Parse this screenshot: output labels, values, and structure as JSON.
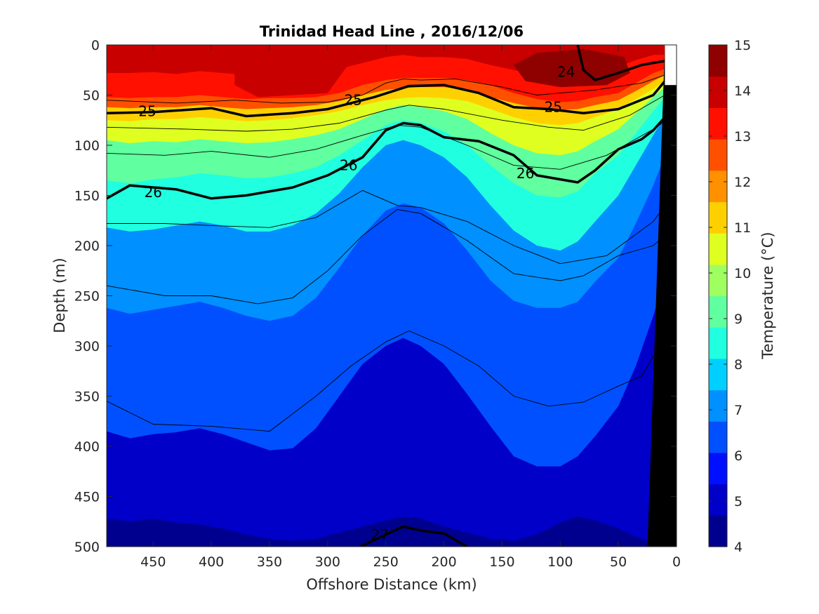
{
  "chart_data": {
    "type": "heatmap",
    "title": "Trinidad Head Line , 2016/12/06",
    "xlabel": "Offshore Distance (km)",
    "ylabel": "Depth (m)",
    "colorbar_label": "Temperature (°C)",
    "x_reversed": true,
    "y_reversed": true,
    "xlim": [
      0,
      490
    ],
    "ylim": [
      0,
      500
    ],
    "xticks": [
      450,
      400,
      350,
      300,
      250,
      200,
      150,
      100,
      50,
      0
    ],
    "yticks": [
      0,
      50,
      100,
      150,
      200,
      250,
      300,
      350,
      400,
      450,
      500
    ],
    "colorbar_range": [
      4,
      15
    ],
    "colorbar_ticks": [
      4,
      5,
      6,
      7,
      8,
      9,
      10,
      11,
      12,
      13,
      14,
      15
    ],
    "colormap": [
      "#00008f",
      "#0000c8",
      "#0010ff",
      "#0050ff",
      "#0090ff",
      "#00d0ff",
      "#20ffdf",
      "#60ff9f",
      "#a0ff60",
      "#dfff20",
      "#ffd000",
      "#ff9000",
      "#ff5000",
      "#ff1000",
      "#c80000",
      "#8f0000"
    ],
    "x_profile_km": [
      490,
      470,
      450,
      430,
      410,
      390,
      370,
      350,
      330,
      310,
      290,
      270,
      250,
      235,
      220,
      200,
      180,
      160,
      140,
      120,
      100,
      85,
      70,
      50,
      35,
      20,
      10
    ],
    "isotherm_depths": [
      {
        "temp": 14,
        "depth": [
          28,
          28,
          27,
          29,
          26,
          28,
          30,
          30,
          28,
          26,
          24,
          18,
          12,
          10,
          12,
          12,
          14,
          20,
          25,
          30,
          32,
          30,
          26,
          22,
          15,
          10,
          10
        ]
      },
      {
        "temp": 13,
        "depth": [
          52,
          53,
          52,
          52,
          50,
          52,
          54,
          53,
          53,
          52,
          48,
          40,
          35,
          33,
          33,
          33,
          35,
          40,
          48,
          54,
          57,
          56,
          52,
          48,
          38,
          28,
          24
        ]
      },
      {
        "temp": 12,
        "depth": [
          62,
          63,
          62,
          62,
          60,
          62,
          64,
          63,
          62,
          60,
          56,
          50,
          45,
          43,
          42,
          42,
          45,
          52,
          58,
          63,
          65,
          64,
          60,
          55,
          46,
          36,
          30
        ]
      },
      {
        "temp": 11,
        "depth": [
          75,
          76,
          74,
          74,
          72,
          74,
          76,
          75,
          73,
          70,
          66,
          60,
          55,
          53,
          52,
          53,
          56,
          64,
          72,
          78,
          80,
          78,
          72,
          64,
          54,
          44,
          36
        ]
      },
      {
        "temp": 10,
        "depth": [
          95,
          98,
          96,
          97,
          94,
          96,
          98,
          97,
          94,
          90,
          84,
          74,
          64,
          60,
          62,
          66,
          74,
          88,
          100,
          108,
          110,
          106,
          96,
          84,
          68,
          52,
          42
        ]
      },
      {
        "temp": 9,
        "depth": [
          135,
          138,
          134,
          132,
          128,
          130,
          133,
          132,
          128,
          122,
          110,
          95,
          80,
          75,
          78,
          86,
          100,
          120,
          138,
          150,
          152,
          146,
          128,
          110,
          88,
          66,
          52
        ]
      },
      {
        "temp": 8,
        "depth": [
          182,
          186,
          184,
          180,
          176,
          180,
          186,
          186,
          180,
          168,
          148,
          122,
          100,
          95,
          100,
          112,
          132,
          160,
          185,
          200,
          205,
          196,
          176,
          150,
          120,
          90,
          70
        ]
      },
      {
        "temp": 7,
        "depth": [
          262,
          268,
          264,
          260,
          256,
          262,
          270,
          275,
          270,
          252,
          222,
          190,
          165,
          158,
          162,
          178,
          205,
          235,
          255,
          262,
          262,
          256,
          236,
          212,
          178,
          140,
          110
        ]
      },
      {
        "temp": 6,
        "depth": [
          385,
          392,
          388,
          386,
          382,
          388,
          396,
          404,
          402,
          382,
          350,
          318,
          300,
          292,
          300,
          318,
          348,
          380,
          410,
          420,
          420,
          410,
          390,
          360,
          320,
          270,
          230
        ]
      },
      {
        "temp": 5,
        "depth": [
          472,
          475,
          472,
          476,
          478,
          482,
          488,
          492,
          494,
          492,
          486,
          480,
          474,
          470,
          472,
          480,
          486,
          492,
          494,
          488,
          476,
          470,
          474,
          482,
          490,
          496,
          500
        ]
      }
    ],
    "density_contours": [
      {
        "label": "24",
        "x": [
          85,
          80,
          70,
          50,
          30,
          20,
          10
        ],
        "y": [
          0,
          25,
          35,
          28,
          20,
          18,
          16
        ]
      },
      {
        "label": "25",
        "x": [
          490,
          450,
          400,
          370,
          330,
          300,
          260,
          230,
          200,
          170,
          140,
          110,
          80,
          50,
          20,
          10
        ],
        "y": [
          68,
          67,
          63,
          71,
          68,
          64,
          52,
          41,
          40,
          48,
          62,
          64,
          68,
          64,
          50,
          36
        ]
      },
      {
        "label": "26",
        "x": [
          490,
          470,
          430,
          400,
          370,
          330,
          300,
          270,
          250,
          235,
          220,
          200,
          170,
          140,
          120,
          100,
          85,
          70,
          50,
          30,
          20,
          10
        ],
        "y": [
          153,
          140,
          144,
          153,
          150,
          142,
          130,
          112,
          85,
          78,
          80,
          92,
          96,
          110,
          130,
          134,
          137,
          125,
          104,
          94,
          85,
          72
        ]
      },
      {
        "label": "27",
        "x": [
          272,
          250,
          235,
          220,
          200,
          180
        ],
        "y": [
          500,
          488,
          480,
          484,
          487,
          500
        ]
      }
    ],
    "label_positions": [
      {
        "label": "24",
        "x": 95,
        "y": 27
      },
      {
        "label": "25",
        "x": 455,
        "y": 66
      },
      {
        "label": "25",
        "x": 278,
        "y": 55
      },
      {
        "label": "25",
        "x": 106,
        "y": 62
      },
      {
        "label": "26",
        "x": 450,
        "y": 147
      },
      {
        "label": "26",
        "x": 282,
        "y": 120
      },
      {
        "label": "26",
        "x": 130,
        "y": 128
      },
      {
        "label": "27",
        "x": 255,
        "y": 488
      }
    ],
    "thin_contours": [
      {
        "x": [
          490,
          430,
          380,
          340,
          300,
          270,
          250,
          235,
          220,
          190,
          150,
          120,
          100,
          70,
          30,
          10
        ],
        "y": [
          55,
          58,
          55,
          58,
          57,
          50,
          38,
          34,
          35,
          34,
          42,
          50,
          48,
          45,
          38,
          30
        ]
      },
      {
        "x": [
          490,
          420,
          370,
          330,
          290,
          250,
          230,
          200,
          150,
          110,
          80,
          40,
          10
        ],
        "y": [
          82,
          84,
          86,
          84,
          78,
          65,
          60,
          64,
          75,
          82,
          85,
          70,
          50
        ]
      },
      {
        "x": [
          490,
          440,
          400,
          350,
          310,
          270,
          240,
          220,
          180,
          140,
          100,
          60,
          20,
          10
        ],
        "y": [
          108,
          110,
          106,
          112,
          104,
          90,
          80,
          82,
          100,
          120,
          124,
          110,
          84,
          76
        ]
      },
      {
        "x": [
          490,
          440,
          400,
          350,
          310,
          270,
          240,
          220,
          180,
          140,
          100,
          60,
          20,
          10
        ],
        "y": [
          178,
          178,
          180,
          182,
          172,
          145,
          160,
          162,
          176,
          200,
          218,
          210,
          176,
          160
        ]
      },
      {
        "x": [
          490,
          440,
          400,
          360,
          330,
          300,
          270,
          240,
          220,
          180,
          140,
          100,
          80,
          50,
          20,
          10
        ],
        "y": [
          240,
          250,
          250,
          258,
          252,
          225,
          190,
          164,
          168,
          195,
          228,
          235,
          230,
          210,
          200,
          190
        ]
      },
      {
        "x": [
          490,
          450,
          400,
          350,
          310,
          280,
          250,
          230,
          200,
          170,
          140,
          110,
          80,
          50,
          30,
          20
        ],
        "y": [
          355,
          378,
          380,
          385,
          350,
          320,
          296,
          285,
          300,
          320,
          350,
          360,
          356,
          340,
          330,
          310
        ]
      }
    ],
    "seafloor_note": "black wedge",
    "seafloor_x": [
      25,
      20,
      10
    ],
    "seafloor_y": [
      500,
      200,
      0
    ]
  }
}
